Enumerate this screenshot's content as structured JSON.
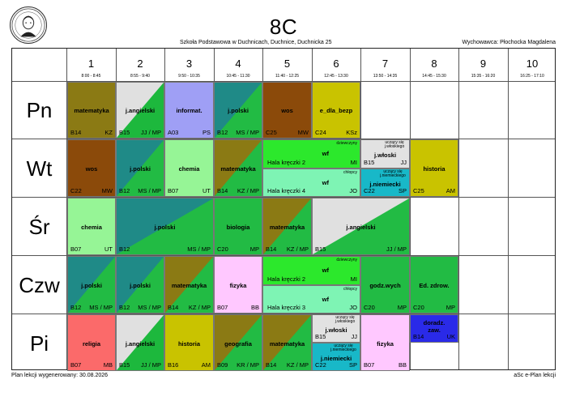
{
  "header": {
    "class_name": "8C",
    "school": "Szkoła Podstawowa w Duchnicach, Duchnice, Duchnicka 25",
    "teacher": "Wychowawca: Płochocka Magdalena"
  },
  "periods": [
    {
      "num": "1",
      "time": "8:00 - 8:45"
    },
    {
      "num": "2",
      "time": "8:55 - 9:40"
    },
    {
      "num": "3",
      "time": "9:50 - 10:35"
    },
    {
      "num": "4",
      "time": "10:45 - 11:30"
    },
    {
      "num": "5",
      "time": "11:40 - 12:25"
    },
    {
      "num": "6",
      "time": "12:45 - 13:30"
    },
    {
      "num": "7",
      "time": "13:50 - 14:35"
    },
    {
      "num": "8",
      "time": "14:45 - 15:30"
    },
    {
      "num": "9",
      "time": "15:35 - 16:20"
    },
    {
      "num": "10",
      "time": "16:25 - 17:10"
    }
  ],
  "days": [
    "Pn",
    "Wt",
    "Śr",
    "Czw",
    "Pi"
  ],
  "colors": {
    "matematyka": "#8b7a14",
    "angielski_light": "#e0e0e0",
    "angielski_dark": "#1db83d",
    "informatyka": "#9f9ff5",
    "polski_teal": "#1f8a87",
    "polski_green": "#22bb44",
    "wos": "#8b4a0a",
    "edb": "#c9c300",
    "chemia": "#96f596",
    "historia": "#c9c300",
    "biologia": "#22bb44",
    "wf_dz": "#2ce82c",
    "wf_ch": "#7ef4b4",
    "wloski": "#e2e2e2",
    "niemiecki": "#18b8c8",
    "fizyka": "#ffc8ff",
    "godz": "#22bb44",
    "zdrow": "#22bb44",
    "religia": "#fb6a6a",
    "doradz": "#2a2ae8"
  },
  "lessons": {
    "pn": [
      {
        "subject": "matematyka",
        "room": "B14",
        "teacher": "KZ"
      },
      {
        "subject": "j.angielski",
        "room": "B15",
        "teacher": "JJ / MP"
      },
      {
        "subject": "informat.",
        "room": "A03",
        "teacher": "PS"
      },
      {
        "subject": "j.polski",
        "room": "B12",
        "teacher": "MS / MP"
      },
      {
        "subject": "wos",
        "room": "C25",
        "teacher": "MW"
      },
      {
        "subject": "e_dla_bezp",
        "room": "C24",
        "teacher": "KSz"
      }
    ],
    "wt": [
      {
        "subject": "wos",
        "room": "C22",
        "teacher": "MW"
      },
      {
        "subject": "j.polski",
        "room": "B12",
        "teacher": "MS / MP"
      },
      {
        "subject": "chemia",
        "room": "B07",
        "teacher": "UT"
      },
      {
        "subject": "matematyka",
        "room": "B14",
        "teacher": "KZ / MP"
      },
      {
        "subject": "wf",
        "group": "dziewczyny",
        "room": "Hala kręczki 2",
        "teacher": "MI"
      },
      {
        "subject": "wf",
        "group": "chłopcy",
        "room": "Hala kręczki 4",
        "teacher": "JO"
      },
      {
        "subject": "j.włoski",
        "group": "uczący się j.włoskiego",
        "room": "B15",
        "teacher": "JJ"
      },
      {
        "subject": "j.niemiecki",
        "group": "uczący się j.niemieckiego",
        "room": "C22",
        "teacher": "SP"
      },
      {
        "subject": "historia",
        "room": "C25",
        "teacher": "AM"
      }
    ],
    "sr": [
      {
        "subject": "chemia",
        "room": "B07",
        "teacher": "UT"
      },
      {
        "subject": "j.polski",
        "room": "B12",
        "teacher": "MS / MP"
      },
      {
        "subject": "biologia",
        "room": "C20",
        "teacher": "MP"
      },
      {
        "subject": "matematyka",
        "room": "B14",
        "teacher": "KZ / MP"
      },
      {
        "subject": "j.angielski",
        "room": "B15",
        "teacher": "JJ / MP"
      }
    ],
    "czw": [
      {
        "subject": "j.polski",
        "room": "B12",
        "teacher": "MS / MP"
      },
      {
        "subject": "j.polski",
        "room": "B12",
        "teacher": "MS / MP"
      },
      {
        "subject": "matematyka",
        "room": "B14",
        "teacher": "KZ / MP"
      },
      {
        "subject": "fizyka",
        "room": "B07",
        "teacher": "BB"
      },
      {
        "subject": "wf",
        "group": "dziewczyny",
        "room": "Hala kręczki 2",
        "teacher": "MI"
      },
      {
        "subject": "wf",
        "group": "chłopcy",
        "room": "Hala kręczki 3",
        "teacher": "JO"
      },
      {
        "subject": "godz.wych",
        "room": "C20",
        "teacher": "MP"
      },
      {
        "subject": "Ed. zdrow.",
        "room": "C20",
        "teacher": "MP"
      }
    ],
    "pi": [
      {
        "subject": "religia",
        "room": "B07",
        "teacher": "MB"
      },
      {
        "subject": "j.angielski",
        "room": "B15",
        "teacher": "JJ / MP"
      },
      {
        "subject": "historia",
        "room": "B16",
        "teacher": "AM"
      },
      {
        "subject": "geografia",
        "room": "B09",
        "teacher": "KR / MP"
      },
      {
        "subject": "matematyka",
        "room": "B14",
        "teacher": "KZ / MP"
      },
      {
        "subject": "j.włoski",
        "group": "uczący się j.włoskiego",
        "room": "B15",
        "teacher": "JJ"
      },
      {
        "subject": "j.niemiecki",
        "group": "uczący się j.niemieckiego",
        "room": "C22",
        "teacher": "SP"
      },
      {
        "subject": "fizyka",
        "room": "B07",
        "teacher": "BB"
      },
      {
        "subject": "doradz. zaw.",
        "room": "B14",
        "teacher": "UK"
      }
    ]
  },
  "footer": {
    "generated": "Plan lekcji wygenerowany: 30.08.2026",
    "app": "aSc e-Plan lekcji"
  }
}
